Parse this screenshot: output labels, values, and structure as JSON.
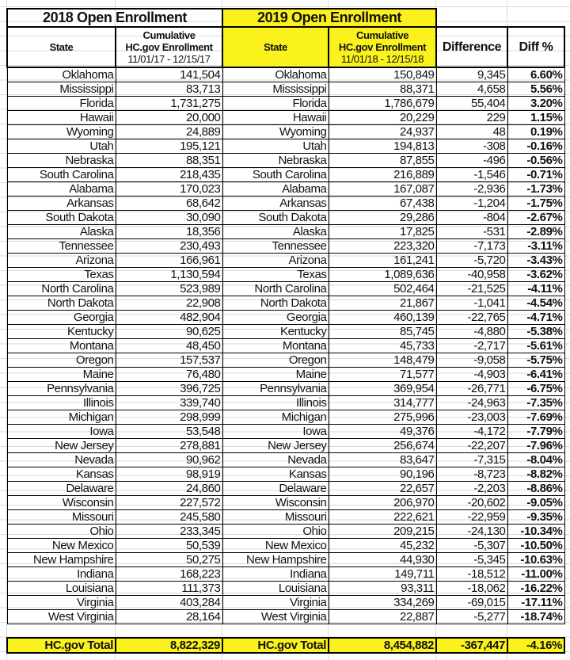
{
  "header": {
    "group_2018": "2018 Open Enrollment",
    "group_2019": "2019 Open Enrollment",
    "state_2018": "State",
    "enroll_2018_l1": "Cumulative",
    "enroll_2018_l2": "HC.gov Enrollment",
    "enroll_2018_l3": "11/01/17 - 12/15/17",
    "state_2019": "State",
    "enroll_2019_l1": "Cumulative",
    "enroll_2019_l2": "HC.gov Enrollment",
    "enroll_2019_l3": "11/01/18 - 12/15/18",
    "difference": "Difference",
    "diff_pct": "Diff %"
  },
  "highlight_color": "#fbf21d",
  "rows": [
    [
      "Oklahoma",
      "141,504",
      "150,849",
      "9,345",
      "6.60%"
    ],
    [
      "Mississippi",
      "83,713",
      "88,371",
      "4,658",
      "5.56%"
    ],
    [
      "Florida",
      "1,731,275",
      "1,786,679",
      "55,404",
      "3.20%"
    ],
    [
      "Hawaii",
      "20,000",
      "20,229",
      "229",
      "1.15%"
    ],
    [
      "Wyoming",
      "24,889",
      "24,937",
      "48",
      "0.19%"
    ],
    [
      "Utah",
      "195,121",
      "194,813",
      "-308",
      "-0.16%"
    ],
    [
      "Nebraska",
      "88,351",
      "87,855",
      "-496",
      "-0.56%"
    ],
    [
      "South Carolina",
      "218,435",
      "216,889",
      "-1,546",
      "-0.71%"
    ],
    [
      "Alabama",
      "170,023",
      "167,087",
      "-2,936",
      "-1.73%"
    ],
    [
      "Arkansas",
      "68,642",
      "67,438",
      "-1,204",
      "-1.75%"
    ],
    [
      "South Dakota",
      "30,090",
      "29,286",
      "-804",
      "-2.67%"
    ],
    [
      "Alaska",
      "18,356",
      "17,825",
      "-531",
      "-2.89%"
    ],
    [
      "Tennessee",
      "230,493",
      "223,320",
      "-7,173",
      "-3.11%"
    ],
    [
      "Arizona",
      "166,961",
      "161,241",
      "-5,720",
      "-3.43%"
    ],
    [
      "Texas",
      "1,130,594",
      "1,089,636",
      "-40,958",
      "-3.62%"
    ],
    [
      "North Carolina",
      "523,989",
      "502,464",
      "-21,525",
      "-4.11%"
    ],
    [
      "North Dakota",
      "22,908",
      "21,867",
      "-1,041",
      "-4.54%"
    ],
    [
      "Georgia",
      "482,904",
      "460,139",
      "-22,765",
      "-4.71%"
    ],
    [
      "Kentucky",
      "90,625",
      "85,745",
      "-4,880",
      "-5.38%"
    ],
    [
      "Montana",
      "48,450",
      "45,733",
      "-2,717",
      "-5.61%"
    ],
    [
      "Oregon",
      "157,537",
      "148,479",
      "-9,058",
      "-5.75%"
    ],
    [
      "Maine",
      "76,480",
      "71,577",
      "-4,903",
      "-6.41%"
    ],
    [
      "Pennsylvania",
      "396,725",
      "369,954",
      "-26,771",
      "-6.75%"
    ],
    [
      "Illinois",
      "339,740",
      "314,777",
      "-24,963",
      "-7.35%"
    ],
    [
      "Michigan",
      "298,999",
      "275,996",
      "-23,003",
      "-7.69%"
    ],
    [
      "Iowa",
      "53,548",
      "49,376",
      "-4,172",
      "-7.79%"
    ],
    [
      "New Jersey",
      "278,881",
      "256,674",
      "-22,207",
      "-7.96%"
    ],
    [
      "Nevada",
      "90,962",
      "83,647",
      "-7,315",
      "-8.04%"
    ],
    [
      "Kansas",
      "98,919",
      "90,196",
      "-8,723",
      "-8.82%"
    ],
    [
      "Delaware",
      "24,860",
      "22,657",
      "-2,203",
      "-8.86%"
    ],
    [
      "Wisconsin",
      "227,572",
      "206,970",
      "-20,602",
      "-9.05%"
    ],
    [
      "Missouri",
      "245,580",
      "222,621",
      "-22,959",
      "-9.35%"
    ],
    [
      "Ohio",
      "233,345",
      "209,215",
      "-24,130",
      "-10.34%"
    ],
    [
      "New Mexico",
      "50,539",
      "45,232",
      "-5,307",
      "-10.50%"
    ],
    [
      "New Hampshire",
      "50,275",
      "44,930",
      "-5,345",
      "-10.63%"
    ],
    [
      "Indiana",
      "168,223",
      "149,711",
      "-18,512",
      "-11.00%"
    ],
    [
      "Louisiana",
      "111,373",
      "93,311",
      "-18,062",
      "-16.22%"
    ],
    [
      "Virginia",
      "403,284",
      "334,269",
      "-69,015",
      "-17.11%"
    ],
    [
      "West Virginia",
      "28,164",
      "22,887",
      "-5,277",
      "-18.74%"
    ]
  ],
  "total": {
    "label_2018": "HC.gov Total",
    "value_2018": "8,822,329",
    "label_2019": "HC.gov Total",
    "value_2019": "8,454,882",
    "difference": "-367,447",
    "diff_pct": "-4.16%"
  }
}
